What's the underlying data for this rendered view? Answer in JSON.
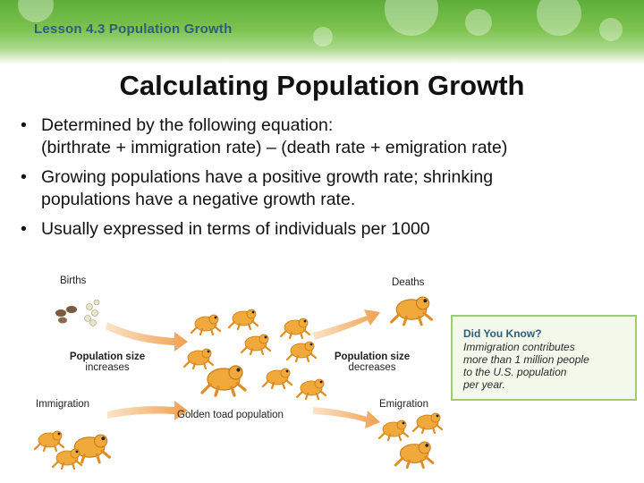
{
  "header": {
    "lesson": "Lesson 4.3 Population Growth"
  },
  "title": "Calculating Population Growth",
  "bullets": [
    {
      "lines": [
        "Determined by the following equation:",
        "(birthrate + immigration rate) – (death rate + emigration rate)"
      ]
    },
    {
      "lines": [
        "Growing populations have a positive growth rate; shrinking",
        "populations have a negative growth rate."
      ]
    },
    {
      "lines": [
        "Usually expressed in terms of individuals per 1000"
      ]
    }
  ],
  "figure": {
    "births": "Births",
    "deaths": "Deaths",
    "increase_line1": "Population size",
    "increase_line2": "increases",
    "decrease_line1": "Population size",
    "decrease_line2": "decreases",
    "immigration": "Immigration",
    "emigration": "Emigration",
    "center": "Golden toad population"
  },
  "did_you_know": {
    "heading": "Did You Know?",
    "lines": [
      "Immigration contributes",
      "more than 1 million people",
      "to the U.S. population",
      "per year."
    ]
  },
  "colors": {
    "accent_green": "#7cc24f",
    "toad_orange": "#f2a93b",
    "arrow_orange": "#f0a050",
    "header_blue": "#2f5e7a"
  }
}
